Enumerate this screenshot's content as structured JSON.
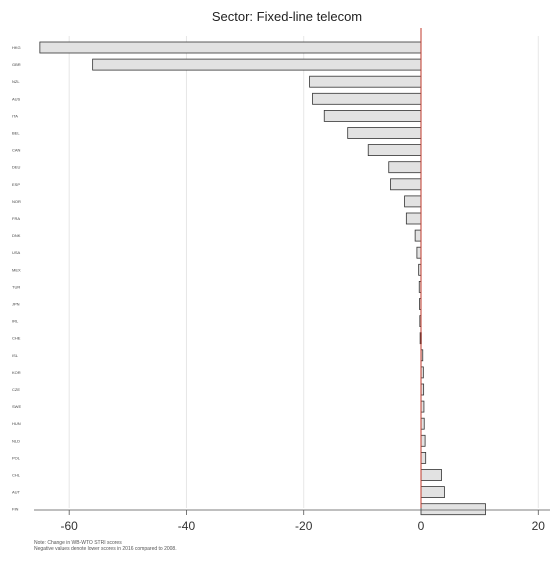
{
  "chart_data": {
    "type": "bar",
    "orientation": "horizontal",
    "title": "Sector: Fixed-line telecom",
    "xlim": [
      -66,
      22
    ],
    "xticks": [
      -60,
      -40,
      -20,
      0,
      20
    ],
    "xtick_labels": [
      "-60",
      "-40",
      "-20",
      "0",
      "20"
    ],
    "grid": true,
    "reference_line": {
      "value": 0,
      "color": "#c0392b"
    },
    "bar_fill": "#e2e2e2",
    "bar_stroke": "#333333",
    "categories": [
      "HKG",
      "GBR",
      "NZL",
      "AUS",
      "ITA",
      "BEL",
      "CAN",
      "DEU",
      "ESP",
      "NOR",
      "FRA",
      "DNK",
      "USA",
      "MEX",
      "TUR",
      "JPN",
      "IRL",
      "CHE",
      "ISL",
      "KOR",
      "CZE",
      "SWE",
      "HUN",
      "NLD",
      "POL",
      "CHL",
      "AUT",
      "FIN"
    ],
    "values": [
      -65,
      -56,
      -19,
      -18.5,
      -16.5,
      -12.5,
      -9,
      -5.5,
      -5.2,
      -2.8,
      -2.5,
      -1.0,
      -0.7,
      -0.4,
      -0.3,
      -0.25,
      -0.2,
      -0.15,
      0.3,
      0.4,
      0.45,
      0.5,
      0.55,
      0.7,
      0.8,
      3.5,
      4.0,
      11
    ]
  },
  "note": {
    "line1": "Note: Change in WB-WTO STRI scores",
    "line2": "Negative values denote lower scores in 2016 compared to 2008."
  }
}
